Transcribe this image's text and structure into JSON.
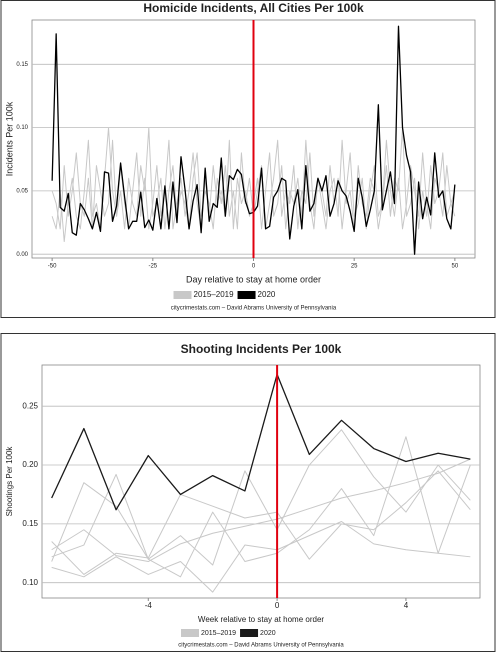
{
  "chart_data": [
    {
      "type": "line",
      "title": "Homicide Incidents, All Cities Per 100k",
      "x_label": "Day relative to stay at home order",
      "y_label": "Incidents Per 100k",
      "footer": "citycrimestats.com –  David Abrams University of Pennsylvania",
      "xlim": [
        -55,
        55
      ],
      "xticks": [
        -50,
        -25,
        0,
        25,
        50
      ],
      "ylim": [
        -0.003,
        0.185
      ],
      "yticks": [
        {
          "value": 0,
          "label": "0.00"
        },
        0.05,
        {
          "value": 0.1,
          "label": "0.10"
        },
        0.15
      ],
      "grid": true,
      "legend": "bottom",
      "vline": 0,
      "vline_color": "#e0000f",
      "x": [
        -50,
        -49,
        -48,
        -47,
        -46,
        -45,
        -44,
        -43,
        -42,
        -41,
        -40,
        -39,
        -38,
        -37,
        -36,
        -35,
        -34,
        -33,
        -32,
        -31,
        -30,
        -29,
        -28,
        -27,
        -26,
        -25,
        -24,
        -23,
        -22,
        -21,
        -20,
        -19,
        -18,
        -17,
        -16,
        -15,
        -14,
        -13,
        -12,
        -11,
        -10,
        -9,
        -8,
        -7,
        -6,
        -5,
        -4,
        -3,
        -2,
        -1,
        0,
        1,
        2,
        3,
        4,
        5,
        6,
        7,
        8,
        9,
        10,
        11,
        12,
        13,
        14,
        15,
        16,
        17,
        18,
        19,
        20,
        21,
        22,
        23,
        24,
        25,
        26,
        27,
        28,
        29,
        30,
        31,
        32,
        33,
        34,
        35,
        36,
        37,
        38,
        39,
        40,
        41,
        42,
        43,
        44,
        45,
        46,
        47,
        48,
        49,
        50
      ],
      "series": [
        {
          "name": "2015–2019",
          "color": "#c8c8c8",
          "values": [
            0.03,
            0.02,
            0.05,
            0.01,
            0.04,
            0.06,
            0.03,
            0.02,
            0.05,
            0.09,
            0.03,
            0.04,
            0.02,
            0.06,
            0.1,
            0.05,
            0.03,
            0.07,
            0.04,
            0.02,
            0.05,
            0.08,
            0.03,
            0.06,
            0.02,
            0.04,
            0.07,
            0.03,
            0.05,
            0.09,
            0.02,
            0.04,
            0.06,
            0.03,
            0.05,
            0.08,
            0.04,
            0.02,
            0.06,
            0.03,
            0.07,
            0.04,
            0.05,
            0.03,
            0.09,
            0.02,
            0.06,
            0.04,
            0.05,
            0.03,
            0.04,
            0.06,
            0.02,
            0.05,
            0.08,
            0.03,
            0.04,
            0.07,
            0.02,
            0.05,
            0.04,
            0.06,
            0.03,
            0.09,
            0.04,
            0.02,
            0.06,
            0.05,
            0.03,
            0.07,
            0.04,
            0.06,
            0.02,
            0.05,
            0.08,
            0.03,
            0.04,
            0.06,
            0.02,
            0.05,
            0.07,
            0.03,
            0.04,
            0.09,
            0.05,
            0.03,
            0.06,
            0.02,
            0.04,
            0.07,
            0.05,
            0.03,
            0.08,
            0.04,
            0.02,
            0.06,
            0.05,
            0.03,
            0.07,
            0.04,
            0.03
          ]
        },
        {
          "color": "#c8c8c8",
          "values": [
            0.05,
            0.04,
            0.02,
            0.07,
            0.03,
            0.05,
            0.08,
            0.04,
            0.03,
            0.06,
            0.02,
            0.07,
            0.05,
            0.03,
            0.04,
            0.09,
            0.03,
            0.05,
            0.02,
            0.06,
            0.04,
            0.03,
            0.07,
            0.05,
            0.1,
            0.03,
            0.04,
            0.06,
            0.02,
            0.05,
            0.07,
            0.03,
            0.05,
            0.04,
            0.02,
            0.06,
            0.08,
            0.03,
            0.05,
            0.04,
            0.02,
            0.06,
            0.04,
            0.07,
            0.03,
            0.05,
            0.02,
            0.08,
            0.04,
            0.06,
            0.03,
            0.05,
            0.07,
            0.02,
            0.04,
            0.06,
            0.09,
            0.03,
            0.05,
            0.04,
            0.07,
            0.02,
            0.05,
            0.04,
            0.08,
            0.03,
            0.06,
            0.04,
            0.02,
            0.05,
            0.06,
            0.03,
            0.09,
            0.04,
            0.05,
            0.02,
            0.07,
            0.04,
            0.03,
            0.06,
            0.05,
            0.02,
            0.04,
            0.07,
            0.03,
            0.06,
            0.05,
            0.1,
            0.03,
            0.04,
            0.06,
            0.02,
            0.05,
            0.03,
            0.07,
            0.04,
            0.05,
            0.08,
            0.03,
            0.04,
            0.05
          ]
        },
        {
          "name": "2020",
          "color": "#000000",
          "values": [
            0.058,
            0.174,
            0.037,
            0.034,
            0.048,
            0.017,
            0.015,
            0.04,
            0.035,
            0.028,
            0.02,
            0.033,
            0.018,
            0.065,
            0.064,
            0.026,
            0.038,
            0.072,
            0.045,
            0.02,
            0.026,
            0.026,
            0.049,
            0.021,
            0.027,
            0.019,
            0.044,
            0.02,
            0.054,
            0.02,
            0.057,
            0.025,
            0.077,
            0.051,
            0.02,
            0.042,
            0.055,
            0.017,
            0.068,
            0.026,
            0.04,
            0.037,
            0.076,
            0.03,
            0.062,
            0.059,
            0.067,
            0.063,
            0.042,
            0.032,
            0.033,
            0.038,
            0.068,
            0.02,
            0.022,
            0.045,
            0.05,
            0.06,
            0.058,
            0.012,
            0.038,
            0.051,
            0.02,
            0.07,
            0.034,
            0.04,
            0.06,
            0.05,
            0.062,
            0.03,
            0.04,
            0.058,
            0.05,
            0.046,
            0.034,
            0.018,
            0.06,
            0.045,
            0.022,
            0.035,
            0.05,
            0.118,
            0.035,
            0.05,
            0.065,
            0.04,
            0.18,
            0.1,
            0.078,
            0.065,
            0,
            0.057,
            0.028,
            0.045,
            0.031,
            0.08,
            0.045,
            0.05,
            0.028,
            0.02,
            0.055
          ]
        }
      ]
    },
    {
      "type": "line",
      "title": "Shooting Incidents Per 100k",
      "x_label": "Week relative to stay at home order",
      "y_label": "Shootings Per 100k",
      "footer": "citycrimestats.com –  David Abrams University of Pennsylvania",
      "xlim": [
        -7.3,
        6.3
      ],
      "xticks": [
        -4,
        0,
        4
      ],
      "ylim": [
        0.087,
        0.285
      ],
      "yticks": [
        {
          "value": 0.1,
          "label": "0.10"
        },
        0.15,
        {
          "value": 0.2,
          "label": "0.20"
        },
        0.25
      ],
      "grid": true,
      "legend": "bottom",
      "vline": 0,
      "vline_color": "#e0000f",
      "x": [
        -7,
        -6,
        -5,
        -4,
        -3,
        -2,
        -1,
        0,
        1,
        2,
        3,
        4,
        5,
        6
      ],
      "series": [
        {
          "name": "2015–2019",
          "color": "#c8c8c8",
          "values": [
            0.128,
            0.145,
            0.123,
            0.118,
            0.133,
            0.142,
            0.148,
            0.154,
            0.163,
            0.172,
            0.178,
            0.185,
            0.193,
            0.205
          ]
        },
        {
          "color": "#c8c8c8",
          "values": [
            0.118,
            0.185,
            0.165,
            0.12,
            0.14,
            0.115,
            0.195,
            0.145,
            0.2,
            0.23,
            0.19,
            0.16,
            0.2,
            0.17
          ]
        },
        {
          "color": "#c8c8c8",
          "values": [
            0.113,
            0.105,
            0.122,
            0.107,
            0.118,
            0.092,
            0.132,
            0.128,
            0.14,
            0.152,
            0.133,
            0.128,
            0.125,
            0.122
          ]
        },
        {
          "color": "#c8c8c8",
          "values": [
            0.122,
            0.132,
            0.192,
            0.12,
            0.105,
            0.16,
            0.118,
            0.125,
            0.145,
            0.18,
            0.14,
            0.224,
            0.125,
            0.2
          ]
        },
        {
          "color": "#c8c8c8",
          "values": [
            0.135,
            0.107,
            0.125,
            0.121,
            0.175,
            0.165,
            0.155,
            0.16,
            0.12,
            0.15,
            0.145,
            0.168,
            0.195,
            0.162
          ]
        },
        {
          "name": "2020",
          "color": "#1a1a1a",
          "values": [
            0.172,
            0.231,
            0.162,
            0.208,
            0.175,
            0.191,
            0.178,
            0.277,
            0.209,
            0.238,
            0.214,
            0.203,
            0.21,
            0.205
          ]
        }
      ]
    }
  ]
}
